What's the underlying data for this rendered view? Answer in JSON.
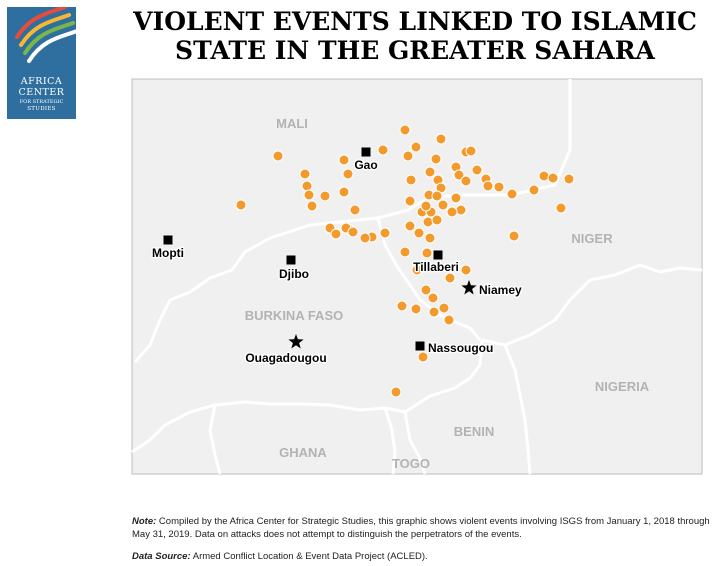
{
  "logo": {
    "line1": "AFRICA",
    "line2": "CENTER",
    "line3": "FOR STRATEGIC",
    "line4": "STUDIES",
    "colors": {
      "background": "#2f6f9f",
      "stripes": [
        "#e94b3c",
        "#f7b733",
        "#7ab648",
        "#ffffff"
      ]
    }
  },
  "title": {
    "line1": "VIOLENT EVENTS LINKED TO ISLAMIC",
    "line2": "STATE IN THE GREATER SAHARA"
  },
  "map": {
    "countries": [
      "MALI",
      "NIGER",
      "BURKINA FASO",
      "NIGERIA",
      "GHANA",
      "TOGO",
      "BENIN"
    ],
    "cities": [
      {
        "name": "Gao",
        "type": "city"
      },
      {
        "name": "Mopti",
        "type": "city"
      },
      {
        "name": "Djibo",
        "type": "city"
      },
      {
        "name": "Tillaberi",
        "type": "city"
      },
      {
        "name": "Niamey",
        "type": "capital"
      },
      {
        "name": "Ouagadougou",
        "type": "capital"
      },
      {
        "name": "Nassougou",
        "type": "city"
      }
    ],
    "colors": {
      "land": "#f0f0f0",
      "border": "#ffffff",
      "frame": "#bdbdbd",
      "event": "#f39a2d",
      "event_outline": "#ffffff",
      "country_label": "#b3b3b3"
    }
  },
  "note": {
    "label": "Note:",
    "text": "Compiled by the Africa Center for Strategic Studies, this graphic shows violent events involving ISGS from January 1, 2018 through May 31, 2019. Data on attacks does not attempt to distinguish the perpetrators of the events."
  },
  "source": {
    "label": "Data Source:",
    "text": "Armed Conflict Location & Event Data Project (ACLED)."
  }
}
